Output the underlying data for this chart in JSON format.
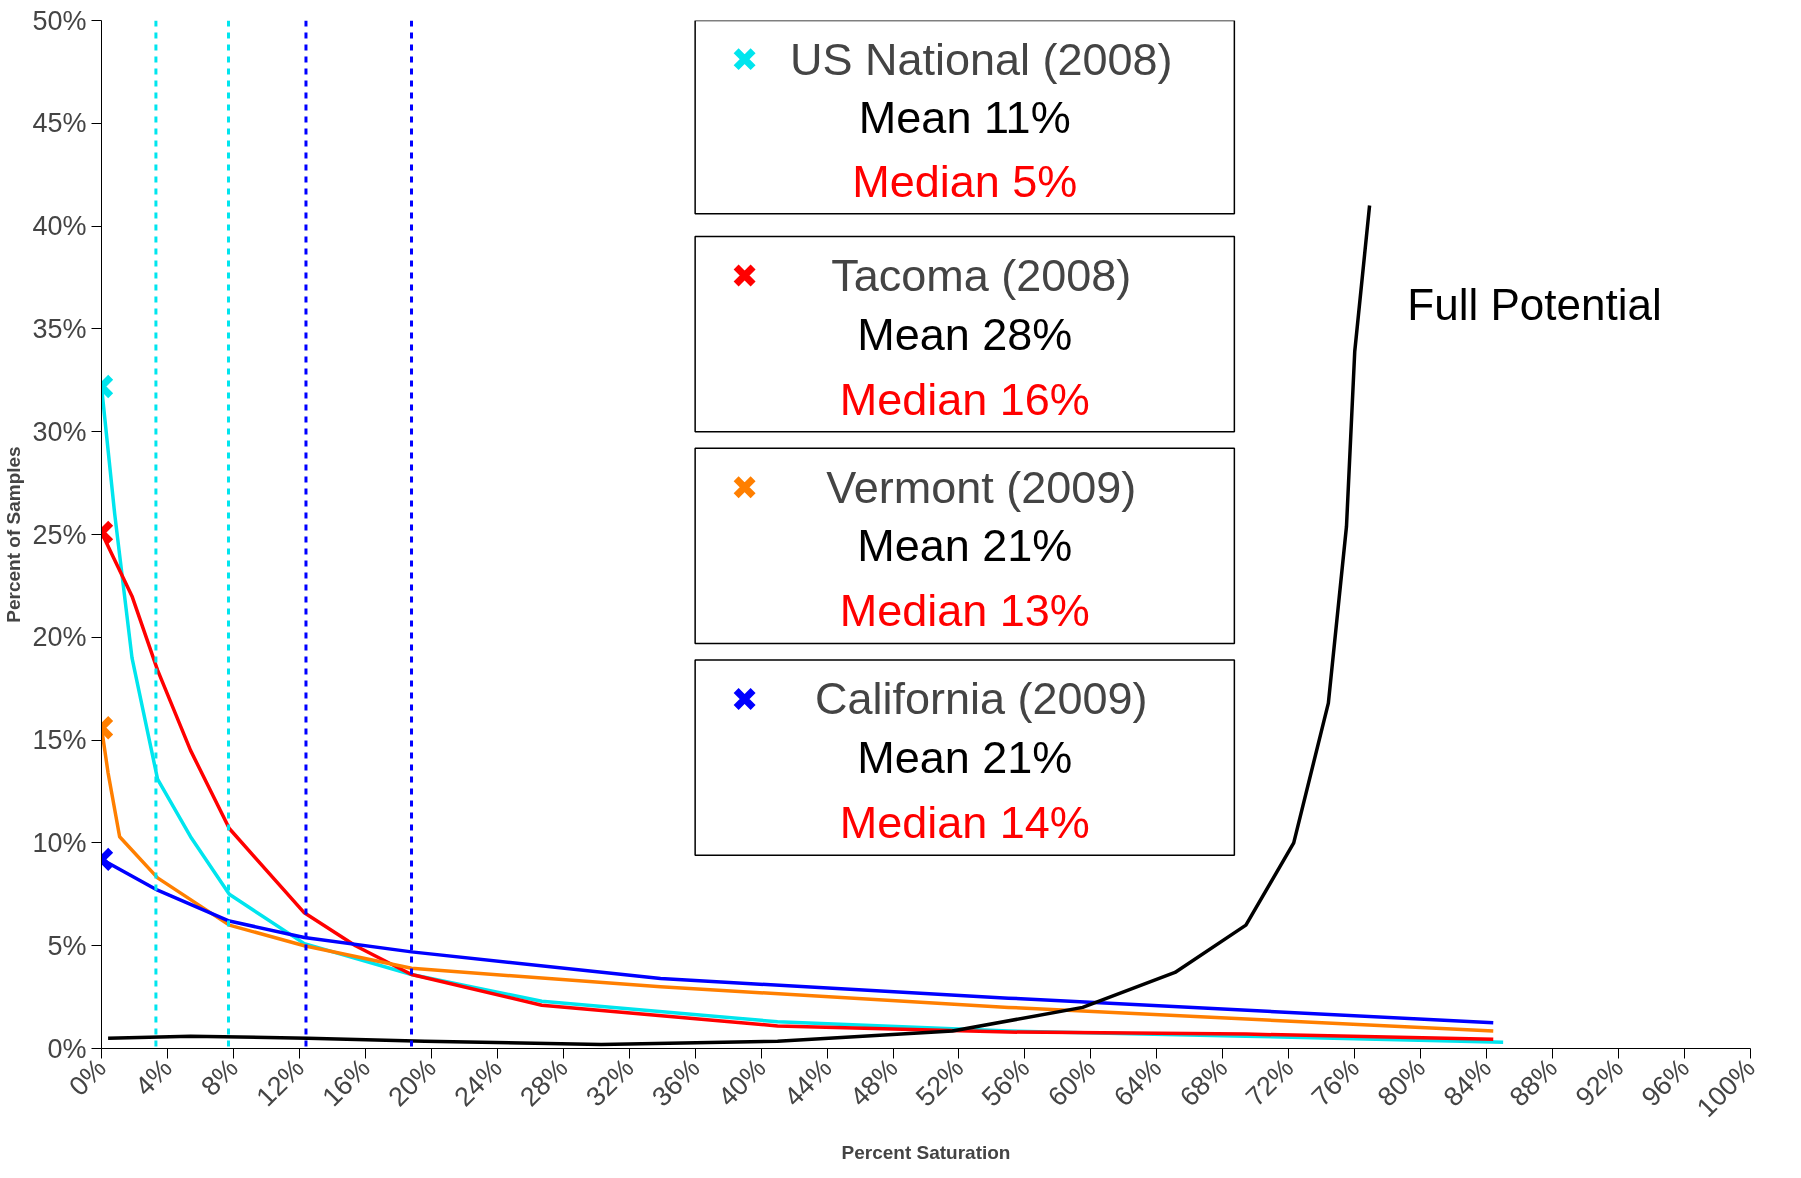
{
  "chart_data": {
    "type": "line",
    "xlabel": "Percent Saturation",
    "ylabel": "Percent of Samples",
    "xlim": [
      0,
      100
    ],
    "ylim": [
      0,
      50
    ],
    "xticks": [
      {
        "value": 0,
        "label": "0%"
      },
      {
        "value": 4,
        "label": "4%"
      },
      {
        "value": 8,
        "label": "8%"
      },
      {
        "value": 12,
        "label": "12%"
      },
      {
        "value": 16,
        "label": "16%"
      },
      {
        "value": 20,
        "label": "20%"
      },
      {
        "value": 24,
        "label": "24%"
      },
      {
        "value": 28,
        "label": "28%"
      },
      {
        "value": 32,
        "label": "32%"
      },
      {
        "value": 36,
        "label": "36%"
      },
      {
        "value": 40,
        "label": "40%"
      },
      {
        "value": 44,
        "label": "44%"
      },
      {
        "value": 48,
        "label": "48%"
      },
      {
        "value": 52,
        "label": "52%"
      },
      {
        "value": 56,
        "label": "56%"
      },
      {
        "value": 60,
        "label": "60%"
      },
      {
        "value": 64,
        "label": "64%"
      },
      {
        "value": 68,
        "label": "68%"
      },
      {
        "value": 72,
        "label": "72%"
      },
      {
        "value": 76,
        "label": "76%"
      },
      {
        "value": 80,
        "label": "80%"
      },
      {
        "value": 84,
        "label": "84%"
      },
      {
        "value": 88,
        "label": "88%"
      },
      {
        "value": 92,
        "label": "92%"
      },
      {
        "value": 96,
        "label": "96%"
      },
      {
        "value": 100,
        "label": "100%"
      }
    ],
    "yticks": [
      {
        "value": 0,
        "label": "0%"
      },
      {
        "value": 5,
        "label": "5%"
      },
      {
        "value": 10,
        "label": "10%"
      },
      {
        "value": 15,
        "label": "15%"
      },
      {
        "value": 20,
        "label": "20%"
      },
      {
        "value": 25,
        "label": "25%"
      },
      {
        "value": 30,
        "label": "30%"
      },
      {
        "value": 35,
        "label": "35%"
      },
      {
        "value": 40,
        "label": "40%"
      },
      {
        "value": 45,
        "label": "45%"
      },
      {
        "value": 50,
        "label": "50%"
      }
    ],
    "grid": false,
    "legend": "top",
    "line_style": "solid",
    "series": [
      {
        "name": "US National (2008)",
        "color": "#00e5ee",
        "x": [
          0,
          0.8,
          1.85,
          3.4,
          5.4,
          7.75,
          12.3,
          18.8,
          26.7,
          41,
          55,
          69.4,
          85
        ],
        "values": [
          32.2,
          26,
          19,
          13.1,
          10.3,
          7.5,
          5.1,
          3.6,
          2.3,
          1.3,
          0.85,
          0.6,
          0.3
        ]
      },
      {
        "name": "Tacoma (2008)",
        "color": "#ff0000",
        "x": [
          0,
          1.85,
          3.4,
          5.4,
          7.75,
          12.3,
          15.4,
          18.8,
          26.7,
          41,
          55,
          69.4,
          84.4
        ],
        "values": [
          25.1,
          22,
          18.4,
          14.5,
          10.7,
          6.6,
          5.0,
          3.6,
          2.1,
          1.1,
          0.8,
          0.7,
          0.45
        ]
      },
      {
        "name": "Vermont (2009)",
        "color": "#ff7f00",
        "x": [
          0,
          0.4,
          1.1,
          3.4,
          7.75,
          12.3,
          18.8,
          33.9,
          55,
          84.4
        ],
        "values": [
          15.6,
          13.4,
          10.3,
          8.3,
          6.0,
          5.0,
          3.9,
          3.0,
          2.0,
          0.85
        ]
      },
      {
        "name": "California (2009)",
        "color": "#0000ff",
        "x": [
          0,
          3.4,
          7.75,
          12.3,
          18.8,
          33.9,
          55,
          84.4
        ],
        "values": [
          9.2,
          7.7,
          6.2,
          5.4,
          4.7,
          3.4,
          2.45,
          1.25
        ]
      },
      {
        "type": "scatter",
        "marker": "cross",
        "color": "#00e5ee",
        "x": [
          0
        ],
        "values": [
          32.2
        ]
      },
      {
        "type": "scatter",
        "marker": "cross",
        "color": "#ff0000",
        "x": [
          0
        ],
        "values": [
          25.1
        ]
      },
      {
        "type": "scatter",
        "marker": "cross",
        "color": "#ff7f00",
        "x": [
          0
        ],
        "values": [
          15.6
        ]
      },
      {
        "type": "scatter",
        "marker": "cross",
        "color": "#0000ff",
        "x": [
          0
        ],
        "values": [
          9.2
        ]
      },
      {
        "name": "Full Potential",
        "color": "#000000",
        "x": [
          0.4,
          5.4,
          12.5,
          19.6,
          30.3,
          41,
          51.6,
          59.5,
          65.1,
          69.4,
          72.3,
          74.4,
          75.5,
          76,
          76.9
        ],
        "values": [
          0.5,
          0.6,
          0.5,
          0.35,
          0.2,
          0.35,
          0.85,
          2.0,
          3.7,
          6.0,
          10,
          16.8,
          25.4,
          33.9,
          41
        ]
      }
    ],
    "ref_lines": [
      {
        "axis": "x",
        "value": 3.3,
        "color": "#00e5ee",
        "line_style": "dashed"
      },
      {
        "axis": "x",
        "value": 7.7,
        "color": "#00e5ee",
        "line_style": "dashed"
      },
      {
        "axis": "x",
        "value": 12.4,
        "color": "#0000ff",
        "line_style": "dashed"
      },
      {
        "axis": "x",
        "value": 18.8,
        "color": "#0000ff",
        "line_style": "dashed"
      }
    ],
    "annotations": [
      "Mean 11%",
      "Median 5%",
      "Mean 28%",
      "Median 16%",
      "Mean 21%",
      "Median 13%",
      "Mean 21%",
      "Median 14%"
    ]
  }
}
